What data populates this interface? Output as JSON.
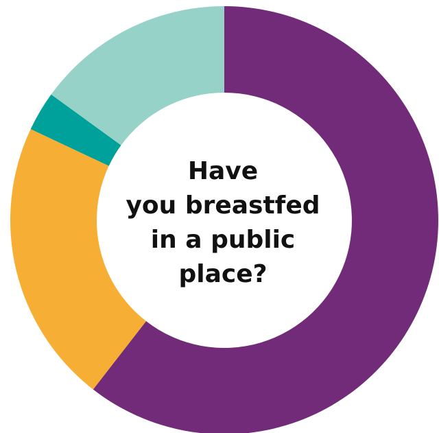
{
  "chart_data": {
    "type": "pie",
    "title_lines": [
      "Have",
      "you breastfed",
      "in a public",
      "place?"
    ],
    "start_angle_deg": 0,
    "direction": "clockwise",
    "slices": [
      {
        "value": 60.5,
        "color": "#722b78"
      },
      {
        "value": 21.5,
        "color": "#f7ae34"
      },
      {
        "value": 3.0,
        "color": "#00a19a"
      },
      {
        "value": 15.0,
        "color": "#97d2c8"
      }
    ]
  }
}
